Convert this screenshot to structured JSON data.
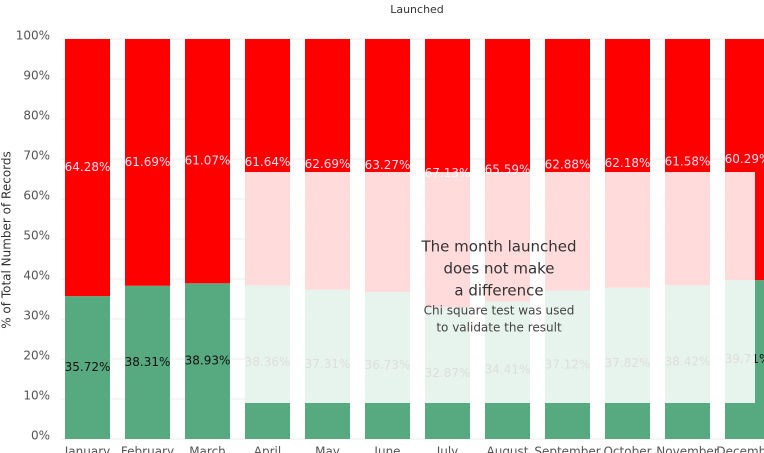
{
  "chart_data": {
    "type": "stacked_bar_100",
    "title": "Launched",
    "y_label": "% of Total Number of Records",
    "categories": [
      "January",
      "February",
      "March",
      "April",
      "May",
      "June",
      "July",
      "August",
      "September",
      "October",
      "November",
      "December"
    ],
    "series": [
      {
        "color": "#57aa7f",
        "values": [
          35.72,
          38.31,
          38.93,
          38.36,
          37.31,
          36.73,
          32.87,
          34.41,
          37.12,
          37.82,
          38.42,
          39.71
        ],
        "value_labels": [
          "35.72%",
          "38.31%",
          "38.93%",
          "38.36%",
          "37.31%",
          "36.73%",
          "32.87%",
          "34.41%",
          "37.12%",
          "37.82%",
          "38.42%",
          "39.71%"
        ]
      },
      {
        "color": "#ff0000",
        "values": [
          64.28,
          61.69,
          61.07,
          61.64,
          62.69,
          63.27,
          67.13,
          65.59,
          62.88,
          62.18,
          61.58,
          60.29
        ],
        "value_labels": [
          "64.28%",
          "61.69%",
          "61.07%",
          "61.64%",
          "62.69%",
          "63.27%",
          "67.13%",
          "65.59%",
          "62.88%",
          "62.18%",
          "61.58%",
          "60.29%"
        ]
      }
    ],
    "ylim": [
      0,
      100
    ],
    "yticks": [
      {
        "value": 0,
        "label": "0%"
      },
      {
        "value": 10,
        "label": "10%"
      },
      {
        "value": 20,
        "label": "20%"
      },
      {
        "value": 30,
        "label": "30%"
      },
      {
        "value": 40,
        "label": "40%"
      },
      {
        "value": 50,
        "label": "50%"
      },
      {
        "value": 60,
        "label": "60%"
      },
      {
        "value": 70,
        "label": "70%"
      },
      {
        "value": 80,
        "label": "80%"
      },
      {
        "value": 90,
        "label": "90%"
      },
      {
        "value": 100,
        "label": "100%"
      }
    ],
    "grid": true,
    "annotation": {
      "heading": [
        "The month launched",
        "does not make",
        "a difference"
      ],
      "note": [
        "Chi square test was used",
        "to validate the result"
      ]
    }
  }
}
